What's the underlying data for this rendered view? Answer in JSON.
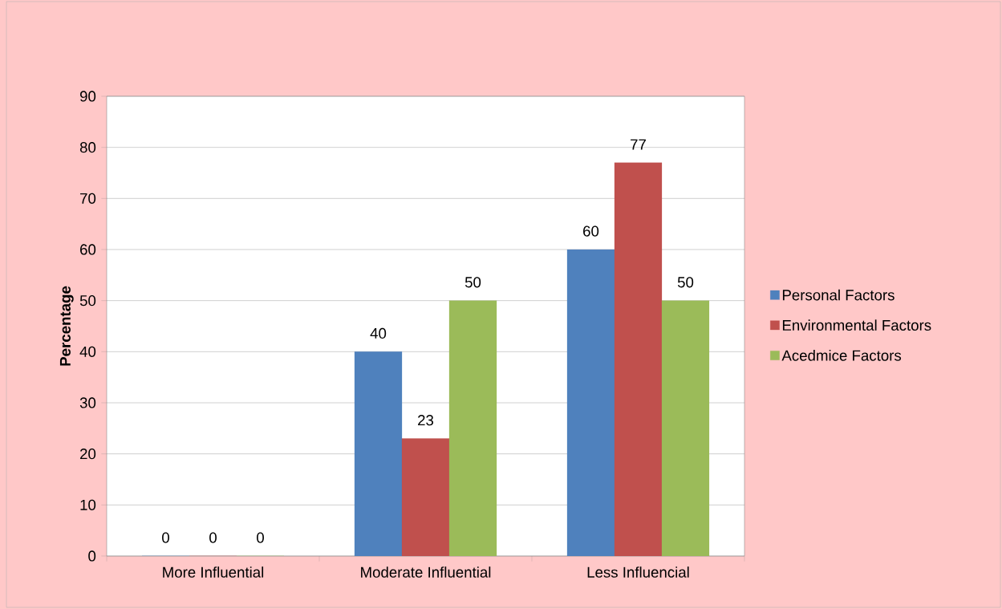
{
  "chart_data": {
    "type": "bar",
    "ylabel": "Percentage",
    "categories": [
      "More Influential",
      "Moderate Influential",
      "Less Influencial"
    ],
    "series": [
      {
        "name": "Personal Factors",
        "color": "#4f81bd",
        "values": [
          0,
          40,
          60
        ]
      },
      {
        "name": "Environmental Factors",
        "color": "#c0504d",
        "values": [
          0,
          23,
          77
        ]
      },
      {
        "name": "Acedmice Factors",
        "color": "#9bbb59",
        "values": [
          0,
          50,
          50
        ]
      }
    ],
    "ylim": [
      0,
      90
    ],
    "yticks": [
      0,
      10,
      20,
      30,
      40,
      50,
      60,
      70,
      80,
      90
    ],
    "grid": "y",
    "legend": "right",
    "data_labels": true
  }
}
